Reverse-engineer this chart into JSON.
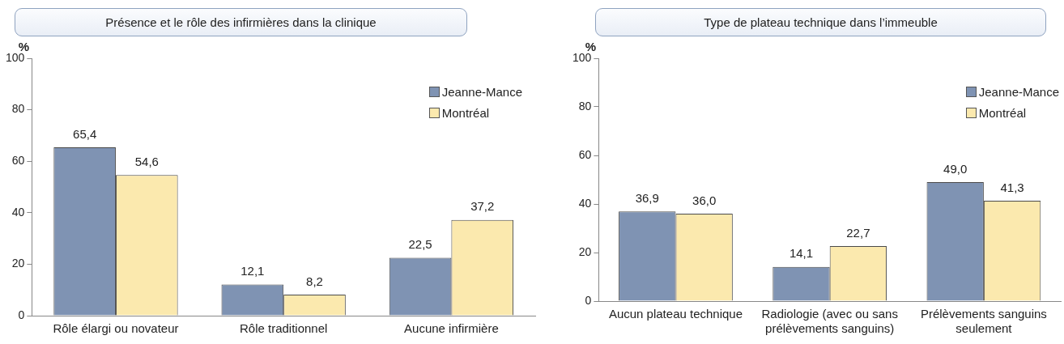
{
  "chart_data": [
    {
      "type": "bar",
      "title": "Présence et le rôle des infirmières dans la clinique",
      "ylabel": "%",
      "categories": [
        "Rôle élargi ou novateur",
        "Rôle traditionnel",
        "Aucune infirmière"
      ],
      "ylim": [
        0,
        100
      ],
      "yticks": [
        0,
        20,
        40,
        60,
        80,
        100
      ],
      "grid": false,
      "legend": "top right",
      "series": [
        {
          "name": "Jeanne-Mance",
          "color": "#7f93b3",
          "values": [
            65.4,
            12.1,
            22.5
          ],
          "value_labels": [
            "65,4",
            "12,1",
            "22,5"
          ]
        },
        {
          "name": "Montréal",
          "color": "#fbe9ae",
          "values": [
            54.6,
            8.2,
            37.2
          ],
          "value_labels": [
            "54,6",
            "8,2",
            "37,2"
          ]
        }
      ]
    },
    {
      "type": "bar",
      "title": "Type de plateau technique dans l’immeuble",
      "ylabel": "%",
      "categories": [
        "Aucun plateau technique",
        "Radiologie (avec ou sans prélèvements sanguins)",
        "Prélèvements sanguins seulement"
      ],
      "ylim": [
        0,
        100
      ],
      "yticks": [
        0,
        20,
        40,
        60,
        80,
        100
      ],
      "grid": false,
      "legend": "top right",
      "series": [
        {
          "name": "Jeanne-Mance",
          "color": "#7f93b3",
          "values": [
            36.9,
            14.1,
            49.0
          ],
          "value_labels": [
            "36,9",
            "14,1",
            "49,0"
          ]
        },
        {
          "name": "Montréal",
          "color": "#fbe9ae",
          "values": [
            36.0,
            22.7,
            41.3
          ],
          "value_labels": [
            "36,0",
            "22,7",
            "41,3"
          ]
        }
      ]
    }
  ]
}
